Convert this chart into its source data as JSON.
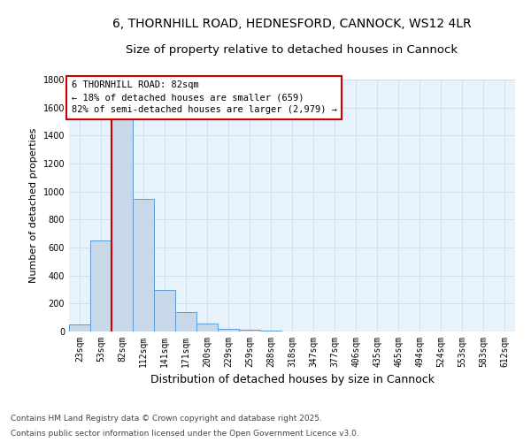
{
  "title_line1": "6, THORNHILL ROAD, HEDNESFORD, CANNOCK, WS12 4LR",
  "title_line2": "Size of property relative to detached houses in Cannock",
  "categories": [
    "23sqm",
    "53sqm",
    "82sqm",
    "112sqm",
    "141sqm",
    "171sqm",
    "200sqm",
    "229sqm",
    "259sqm",
    "288sqm",
    "318sqm",
    "347sqm",
    "377sqm",
    "406sqm",
    "435sqm",
    "465sqm",
    "494sqm",
    "524sqm",
    "553sqm",
    "583sqm",
    "612sqm"
  ],
  "values": [
    50,
    650,
    1650,
    950,
    300,
    140,
    60,
    20,
    10,
    5,
    3,
    2,
    2,
    1,
    1,
    0,
    0,
    0,
    0,
    0,
    0
  ],
  "bar_color": "#c8d8e8",
  "bar_edge_color": "#5b9bd5",
  "highlight_index": 2,
  "highlight_line_color": "#cc0000",
  "ylim": [
    0,
    1800
  ],
  "yticks": [
    0,
    200,
    400,
    600,
    800,
    1000,
    1200,
    1400,
    1600,
    1800
  ],
  "ylabel": "Number of detached properties",
  "xlabel": "Distribution of detached houses by size in Cannock",
  "annotation_title": "6 THORNHILL ROAD: 82sqm",
  "annotation_line1": "← 18% of detached houses are smaller (659)",
  "annotation_line2": "82% of semi-detached houses are larger (2,979) →",
  "annotation_box_color": "#cc0000",
  "annotation_bg": "#ffffff",
  "grid_color": "#d0dff0",
  "background_color": "#e8f2fb",
  "footer_line1": "Contains HM Land Registry data © Crown copyright and database right 2025.",
  "footer_line2": "Contains public sector information licensed under the Open Government Licence v3.0.",
  "title_fontsize": 10,
  "xlabel_fontsize": 9,
  "ylabel_fontsize": 8,
  "tick_fontsize": 7,
  "annotation_fontsize": 7.5,
  "footer_fontsize": 6.5
}
